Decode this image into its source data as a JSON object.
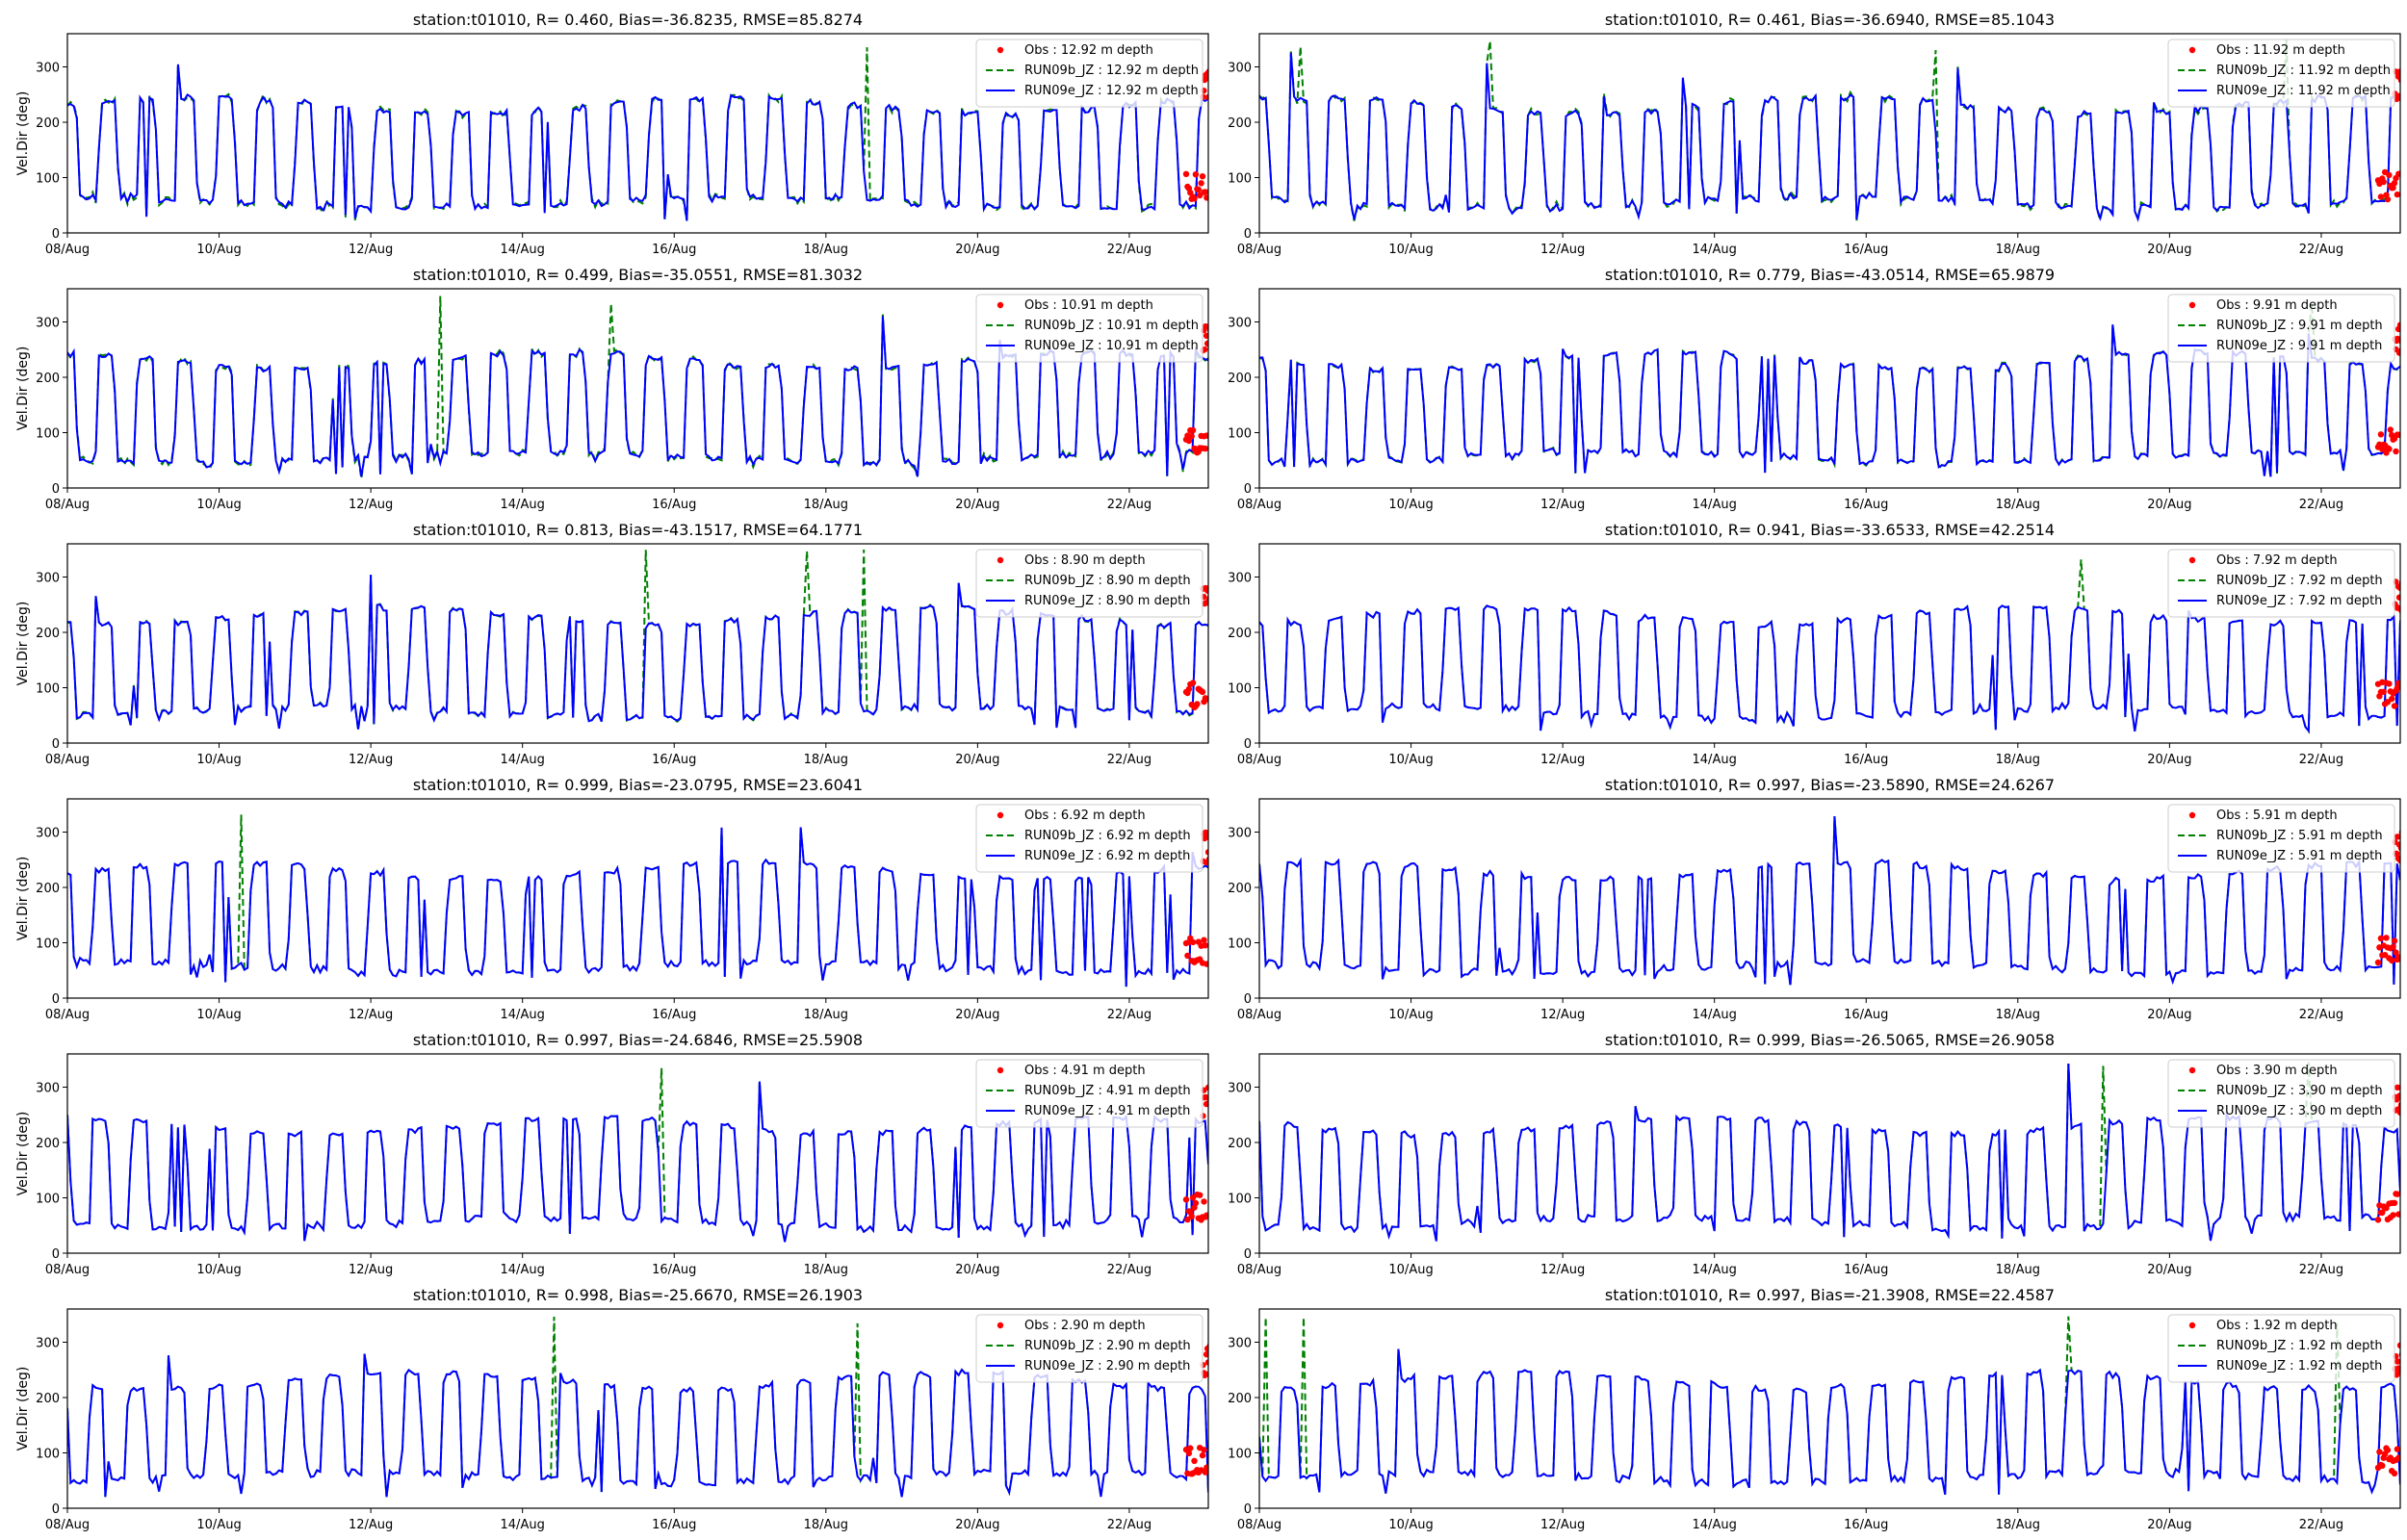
{
  "figure": {
    "background": "#ffffff"
  },
  "style": {
    "obs_color": "#ff0000",
    "runb_color": "#008000",
    "rune_color": "#0000ff"
  },
  "chart_data": [
    {
      "type": "line",
      "title": "station:t01010, R= 0.460, Bias=-36.8235, RMSE=85.8274",
      "xlabel": "",
      "ylabel": "Vel.Dir (deg)",
      "xlim": [
        "2023-08-08",
        "2023-08-23T01:00"
      ],
      "ylim": [
        0,
        360
      ],
      "xticks": [
        "08/Aug",
        "10/Aug",
        "12/Aug",
        "14/Aug",
        "16/Aug",
        "18/Aug",
        "20/Aug",
        "22/Aug"
      ],
      "yticks": [
        0,
        100,
        200,
        300
      ],
      "legend_position": "top-right",
      "grid": false,
      "legend": [
        "Obs : 12.92 m depth",
        "RUN09b_JZ : 12.92 m depth",
        "RUN09e_JZ : 12.92 m depth"
      ],
      "depth_m": 12.92,
      "R": 0.46,
      "bias": -36.8235,
      "rmse": 85.8274
    },
    {
      "type": "line",
      "title": "station:t01010, R= 0.461, Bias=-36.6940, RMSE=85.1043",
      "xlabel": "",
      "ylabel": "",
      "xlim": [
        "2023-08-08",
        "2023-08-23T01:00"
      ],
      "ylim": [
        0,
        360
      ],
      "xticks": [
        "08/Aug",
        "10/Aug",
        "12/Aug",
        "14/Aug",
        "16/Aug",
        "18/Aug",
        "20/Aug",
        "22/Aug"
      ],
      "yticks": [
        0,
        100,
        200,
        300
      ],
      "legend_position": "top-right",
      "grid": false,
      "legend": [
        "Obs : 11.92 m depth",
        "RUN09b_JZ : 11.92 m depth",
        "RUN09e_JZ : 11.92 m depth"
      ],
      "depth_m": 11.92,
      "R": 0.461,
      "bias": -36.694,
      "rmse": 85.1043
    },
    {
      "type": "line",
      "title": "station:t01010, R= 0.499, Bias=-35.0551, RMSE=81.3032",
      "xlabel": "",
      "ylabel": "Vel.Dir (deg)",
      "xlim": [
        "2023-08-08",
        "2023-08-23T01:00"
      ],
      "ylim": [
        0,
        360
      ],
      "xticks": [
        "08/Aug",
        "10/Aug",
        "12/Aug",
        "14/Aug",
        "16/Aug",
        "18/Aug",
        "20/Aug",
        "22/Aug"
      ],
      "yticks": [
        0,
        100,
        200,
        300
      ],
      "legend_position": "top-right",
      "grid": false,
      "legend": [
        "Obs : 10.91 m depth",
        "RUN09b_JZ : 10.91 m depth",
        "RUN09e_JZ : 10.91 m depth"
      ],
      "depth_m": 10.91,
      "R": 0.499,
      "bias": -35.0551,
      "rmse": 81.3032
    },
    {
      "type": "line",
      "title": "station:t01010, R= 0.779, Bias=-43.0514, RMSE=65.9879",
      "xlabel": "",
      "ylabel": "",
      "xlim": [
        "2023-08-08",
        "2023-08-23T01:00"
      ],
      "ylim": [
        0,
        360
      ],
      "xticks": [
        "08/Aug",
        "10/Aug",
        "12/Aug",
        "14/Aug",
        "16/Aug",
        "18/Aug",
        "20/Aug",
        "22/Aug"
      ],
      "yticks": [
        0,
        100,
        200,
        300
      ],
      "legend_position": "top-right",
      "grid": false,
      "legend": [
        "Obs : 9.91 m depth",
        "RUN09b_JZ : 9.91 m depth",
        "RUN09e_JZ : 9.91 m depth"
      ],
      "depth_m": 9.91,
      "R": 0.779,
      "bias": -43.0514,
      "rmse": 65.9879
    },
    {
      "type": "line",
      "title": "station:t01010, R= 0.813, Bias=-43.1517, RMSE=64.1771",
      "xlabel": "",
      "ylabel": "Vel.Dir (deg)",
      "xlim": [
        "2023-08-08",
        "2023-08-23T01:00"
      ],
      "ylim": [
        0,
        360
      ],
      "xticks": [
        "08/Aug",
        "10/Aug",
        "12/Aug",
        "14/Aug",
        "16/Aug",
        "18/Aug",
        "20/Aug",
        "22/Aug"
      ],
      "yticks": [
        0,
        100,
        200,
        300
      ],
      "legend_position": "top-right",
      "grid": false,
      "legend": [
        "Obs : 8.90 m depth",
        "RUN09b_JZ : 8.90 m depth",
        "RUN09e_JZ : 8.90 m depth"
      ],
      "depth_m": 8.9,
      "R": 0.813,
      "bias": -43.1517,
      "rmse": 64.1771
    },
    {
      "type": "line",
      "title": "station:t01010, R= 0.941, Bias=-33.6533, RMSE=42.2514",
      "xlabel": "",
      "ylabel": "",
      "xlim": [
        "2023-08-08",
        "2023-08-23T01:00"
      ],
      "ylim": [
        0,
        360
      ],
      "xticks": [
        "08/Aug",
        "10/Aug",
        "12/Aug",
        "14/Aug",
        "16/Aug",
        "18/Aug",
        "20/Aug",
        "22/Aug"
      ],
      "yticks": [
        0,
        100,
        200,
        300
      ],
      "legend_position": "top-right",
      "grid": false,
      "legend": [
        "Obs : 7.92 m depth",
        "RUN09b_JZ : 7.92 m depth",
        "RUN09e_JZ : 7.92 m depth"
      ],
      "depth_m": 7.92,
      "R": 0.941,
      "bias": -33.6533,
      "rmse": 42.2514
    },
    {
      "type": "line",
      "title": "station:t01010, R= 0.999, Bias=-23.0795, RMSE=23.6041",
      "xlabel": "",
      "ylabel": "Vel.Dir (deg)",
      "xlim": [
        "2023-08-08",
        "2023-08-23T01:00"
      ],
      "ylim": [
        0,
        360
      ],
      "xticks": [
        "08/Aug",
        "10/Aug",
        "12/Aug",
        "14/Aug",
        "16/Aug",
        "18/Aug",
        "20/Aug",
        "22/Aug"
      ],
      "yticks": [
        0,
        100,
        200,
        300
      ],
      "legend_position": "top-right",
      "grid": false,
      "legend": [
        "Obs : 6.92 m depth",
        "RUN09b_JZ : 6.92 m depth",
        "RUN09e_JZ : 6.92 m depth"
      ],
      "depth_m": 6.92,
      "R": 0.999,
      "bias": -23.0795,
      "rmse": 23.6041
    },
    {
      "type": "line",
      "title": "station:t01010, R= 0.997, Bias=-23.5890, RMSE=24.6267",
      "xlabel": "",
      "ylabel": "",
      "xlim": [
        "2023-08-08",
        "2023-08-23T01:00"
      ],
      "ylim": [
        0,
        360
      ],
      "xticks": [
        "08/Aug",
        "10/Aug",
        "12/Aug",
        "14/Aug",
        "16/Aug",
        "18/Aug",
        "20/Aug",
        "22/Aug"
      ],
      "yticks": [
        0,
        100,
        200,
        300
      ],
      "legend_position": "top-right",
      "grid": false,
      "legend": [
        "Obs : 5.91 m depth",
        "RUN09b_JZ : 5.91 m depth",
        "RUN09e_JZ : 5.91 m depth"
      ],
      "depth_m": 5.91,
      "R": 0.997,
      "bias": -23.589,
      "rmse": 24.6267
    },
    {
      "type": "line",
      "title": "station:t01010, R= 0.997, Bias=-24.6846, RMSE=25.5908",
      "xlabel": "",
      "ylabel": "Vel.Dir (deg)",
      "xlim": [
        "2023-08-08",
        "2023-08-23T01:00"
      ],
      "ylim": [
        0,
        360
      ],
      "xticks": [
        "08/Aug",
        "10/Aug",
        "12/Aug",
        "14/Aug",
        "16/Aug",
        "18/Aug",
        "20/Aug",
        "22/Aug"
      ],
      "yticks": [
        0,
        100,
        200,
        300
      ],
      "legend_position": "top-right",
      "grid": false,
      "legend": [
        "Obs : 4.91 m depth",
        "RUN09b_JZ : 4.91 m depth",
        "RUN09e_JZ : 4.91 m depth"
      ],
      "depth_m": 4.91,
      "R": 0.997,
      "bias": -24.6846,
      "rmse": 25.5908
    },
    {
      "type": "line",
      "title": "station:t01010, R= 0.999, Bias=-26.5065, RMSE=26.9058",
      "xlabel": "",
      "ylabel": "",
      "xlim": [
        "2023-08-08",
        "2023-08-23T01:00"
      ],
      "ylim": [
        0,
        360
      ],
      "xticks": [
        "08/Aug",
        "10/Aug",
        "12/Aug",
        "14/Aug",
        "16/Aug",
        "18/Aug",
        "20/Aug",
        "22/Aug"
      ],
      "yticks": [
        0,
        100,
        200,
        300
      ],
      "legend_position": "top-right",
      "grid": false,
      "legend": [
        "Obs : 3.90 m depth",
        "RUN09b_JZ : 3.90 m depth",
        "RUN09e_JZ : 3.90 m depth"
      ],
      "depth_m": 3.9,
      "R": 0.999,
      "bias": -26.5065,
      "rmse": 26.9058
    },
    {
      "type": "line",
      "title": "station:t01010, R= 0.998, Bias=-25.6670, RMSE=26.1903",
      "xlabel": "",
      "ylabel": "Vel.Dir (deg)",
      "xlim": [
        "2023-08-08",
        "2023-08-23T01:00"
      ],
      "ylim": [
        0,
        360
      ],
      "xticks": [
        "08/Aug",
        "10/Aug",
        "12/Aug",
        "14/Aug",
        "16/Aug",
        "18/Aug",
        "20/Aug",
        "22/Aug"
      ],
      "yticks": [
        0,
        100,
        200,
        300
      ],
      "legend_position": "top-right",
      "grid": false,
      "legend": [
        "Obs : 2.90 m depth",
        "RUN09b_JZ : 2.90 m depth",
        "RUN09e_JZ : 2.90 m depth"
      ],
      "depth_m": 2.9,
      "R": 0.998,
      "bias": -25.667,
      "rmse": 26.1903
    },
    {
      "type": "line",
      "title": "station:t01010, R= 0.997, Bias=-21.3908, RMSE=22.4587",
      "xlabel": "",
      "ylabel": "",
      "xlim": [
        "2023-08-08",
        "2023-08-23T01:00"
      ],
      "ylim": [
        0,
        360
      ],
      "xticks": [
        "08/Aug",
        "10/Aug",
        "12/Aug",
        "14/Aug",
        "16/Aug",
        "18/Aug",
        "20/Aug",
        "22/Aug"
      ],
      "yticks": [
        0,
        100,
        200,
        300
      ],
      "legend_position": "top-right",
      "grid": false,
      "legend": [
        "Obs : 1.92 m depth",
        "RUN09b_JZ : 1.92 m depth",
        "RUN09e_JZ : 1.92 m depth"
      ],
      "depth_m": 1.92,
      "R": 0.997,
      "bias": -21.3908,
      "rmse": 22.4587
    }
  ]
}
